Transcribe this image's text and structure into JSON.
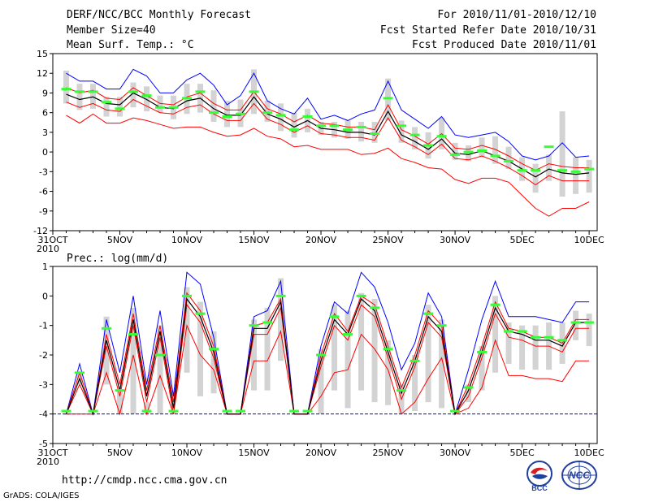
{
  "header": {
    "title": "DERF/NCC/BCC Monthly Forecast",
    "member_size": "Member Size=40",
    "variable": "Mean Surf. Temp.: °C",
    "period": "For 2010/11/01-2010/12/10",
    "started": "Fcst Started Refer Date 2010/10/31",
    "produced": "Fcst Produced Date 2010/11/01"
  },
  "footer": {
    "url": "http://cmdp.ncc.cma.gov.cn",
    "grads": "GrADS: COLA/IGES",
    "logo_left": "BCC",
    "logo_right": "NCC"
  },
  "colors": {
    "mean": "#000000",
    "upper": "#0000ff",
    "lower": "#ff0000",
    "spread_bar": "#d3d3d3",
    "marker": "#33ff33",
    "axis": "#000000"
  },
  "chart_data": [
    {
      "type": "line",
      "title": "Mean Surf. Temp.: °C",
      "xlabel": "",
      "ylabel": "°C",
      "ylim": [
        -12,
        15
      ],
      "yticks": [
        "-12",
        "-9",
        "-6",
        "-3",
        "0",
        "3",
        "6",
        "9",
        "12",
        "15"
      ],
      "yticks_values": [
        -12,
        -9,
        -6,
        -3,
        0,
        3,
        6,
        9,
        12,
        15
      ],
      "xticks": [
        "31OCT\n2010",
        "5NOV",
        "10NOV",
        "15NOV",
        "20NOV",
        "25NOV",
        "30NOV",
        "5DEC",
        "10DEC"
      ],
      "xticks_days": [
        0,
        5,
        10,
        15,
        20,
        25,
        30,
        35,
        40
      ],
      "days": [
        1,
        2,
        3,
        4,
        5,
        6,
        7,
        8,
        9,
        10,
        11,
        12,
        13,
        14,
        15,
        16,
        17,
        18,
        19,
        20,
        21,
        22,
        23,
        24,
        25,
        26,
        27,
        28,
        29,
        30,
        31,
        32,
        33,
        34,
        35,
        36,
        37,
        38,
        39,
        40
      ],
      "series": [
        {
          "name": "upper",
          "values": [
            12,
            10.8,
            10.8,
            9.6,
            9.6,
            12.6,
            11.6,
            9,
            9,
            11,
            12,
            10.2,
            7.2,
            8.6,
            12,
            7.8,
            6.6,
            5.8,
            8.2,
            5,
            5.6,
            4.8,
            5.8,
            6.4,
            10.8,
            6.4,
            5,
            3.6,
            5.4,
            2.6,
            2.2,
            2.6,
            3,
            1.6,
            -0.6,
            -1.2,
            -0.6,
            1.4,
            -0.8,
            -0.6
          ]
        },
        {
          "name": "ens_high",
          "values": [
            9.8,
            9,
            9.4,
            8.2,
            8,
            9.8,
            8.6,
            7.4,
            7.2,
            8.4,
            9,
            7.4,
            6.4,
            6.4,
            9.2,
            6.6,
            5.8,
            4.6,
            5.6,
            4.4,
            4.2,
            3.8,
            3.8,
            3.4,
            7.2,
            3.4,
            2.4,
            1.2,
            2.8,
            0.6,
            0.4,
            1,
            0.4,
            -0.6,
            -1.8,
            -2.8,
            -1.8,
            -2.2,
            -2.4,
            -2.4
          ]
        },
        {
          "name": "mean",
          "values": [
            8.8,
            8,
            8.4,
            7.4,
            7.2,
            9,
            8,
            6.8,
            6.6,
            7.8,
            8.2,
            6.6,
            5.6,
            5.6,
            8.4,
            5.8,
            5,
            3.8,
            4.8,
            3.6,
            3.4,
            3,
            3,
            2.6,
            6.2,
            2.6,
            1.6,
            0.4,
            2,
            -0.2,
            -0.4,
            0.2,
            -0.6,
            -1.4,
            -2.6,
            -3.8,
            -2.6,
            -3.2,
            -3.4,
            -3.2
          ]
        },
        {
          "name": "ens_low",
          "values": [
            7.6,
            6.8,
            7.4,
            6.4,
            6.2,
            8,
            7,
            6,
            5.8,
            6.8,
            7.2,
            5.8,
            4.8,
            4.8,
            7.4,
            5,
            4.2,
            3,
            4,
            2.8,
            2.6,
            2.2,
            2.2,
            1.8,
            5.2,
            1.8,
            0.8,
            -0.4,
            1.2,
            -1,
            -1.2,
            -0.6,
            -1.4,
            -2.4,
            -3.6,
            -5,
            -3.6,
            -4.4,
            -4.4,
            -4.4
          ]
        },
        {
          "name": "lower",
          "values": [
            5.6,
            4.4,
            5.8,
            4.4,
            4.4,
            5.2,
            4.8,
            4.2,
            3.6,
            3.8,
            3.8,
            3,
            2.4,
            2.6,
            3.6,
            2.4,
            2,
            0.8,
            1,
            0.4,
            0.4,
            0.4,
            -0.4,
            -0.2,
            0.6,
            -1,
            -1.6,
            -2.4,
            -2.6,
            -4.2,
            -4.8,
            -4,
            -4,
            -4.6,
            -6.6,
            -8.6,
            -9.8,
            -8.6,
            -8.6,
            -7.6
          ]
        },
        {
          "name": "spread_top",
          "values": [
            12.4,
            10.4,
            10.4,
            8.4,
            8.4,
            10.6,
            10,
            8.6,
            8.6,
            10.4,
            10.4,
            9.4,
            7.8,
            8,
            12.6,
            7.8,
            7.4,
            6,
            6.6,
            4.6,
            4.6,
            4.8,
            4.6,
            4.6,
            11.2,
            4.8,
            3.8,
            3,
            5.2,
            1.4,
            1,
            2.2,
            2.4,
            0.8,
            -0.8,
            -1.8,
            -0.4,
            6.2,
            -0.8,
            -1.2
          ]
        },
        {
          "name": "spread_bottom",
          "values": [
            7.4,
            6.4,
            6.6,
            5.4,
            5.4,
            6.8,
            6.2,
            6,
            5,
            5.8,
            6,
            4.6,
            3.8,
            3.8,
            5.8,
            4.6,
            3.2,
            2.2,
            3,
            2.6,
            2.2,
            2,
            1.6,
            1.4,
            4.8,
            1.4,
            0.4,
            -1,
            0.4,
            -1.2,
            -1.4,
            -0.8,
            -1.8,
            -2.6,
            -4.4,
            -6.2,
            -4.4,
            -6.8,
            -6.4,
            -6.2
          ]
        },
        {
          "name": "marker",
          "values": [
            9.6,
            9.2,
            9.2,
            7.6,
            6.6,
            9.2,
            8.6,
            6.8,
            6.8,
            8.2,
            9.2,
            6,
            5.4,
            5.8,
            9.2,
            6,
            5.6,
            3.4,
            5.4,
            4,
            4,
            3.4,
            3.8,
            2.8,
            8.2,
            4,
            2.6,
            1,
            2.4,
            -0.4,
            0,
            0.2,
            -0.6,
            -1.4,
            -2.8,
            -2.8,
            0.8,
            -2.8,
            -3,
            -2.6
          ]
        }
      ]
    },
    {
      "type": "line",
      "title": "Prec.: log(mm/d)",
      "xlabel": "",
      "ylabel": "log(mm/d)",
      "ylim": [
        -5,
        1
      ],
      "yticks": [
        "-5",
        "-4",
        "-3",
        "-2",
        "-1",
        "0",
        "1"
      ],
      "yticks_values": [
        -5,
        -4,
        -3,
        -2,
        -1,
        0,
        1
      ],
      "xticks": [
        "31OCT\n2010",
        "5NOV",
        "10NOV",
        "15NOV",
        "20NOV",
        "25NOV",
        "30NOV",
        "5DEC",
        "10DEC"
      ],
      "xticks_days": [
        0,
        5,
        10,
        15,
        20,
        25,
        30,
        35,
        40
      ],
      "baseline": -4,
      "days": [
        1,
        2,
        3,
        4,
        5,
        6,
        7,
        8,
        9,
        10,
        11,
        12,
        13,
        14,
        15,
        16,
        17,
        18,
        19,
        20,
        21,
        22,
        23,
        24,
        25,
        26,
        27,
        28,
        29,
        30,
        31,
        32,
        33,
        34,
        35,
        36,
        37,
        38,
        39,
        40
      ],
      "series": [
        {
          "name": "upper",
          "values": [
            -4,
            -2.3,
            -4,
            -0.8,
            -2.6,
            0,
            -3,
            -0.5,
            -3.4,
            0.8,
            0.4,
            -1.4,
            -4,
            -4,
            -0.7,
            -0.5,
            0.5,
            -4,
            -4,
            -1.7,
            -0.2,
            -0.6,
            0.8,
            0.3,
            -0.9,
            -2.5,
            -1.6,
            0.1,
            -0.7,
            -4,
            -2.5,
            -0.8,
            0.5,
            -0.7,
            -0.7,
            -0.7,
            -0.8,
            -0.9,
            -0.2,
            -0.2
          ]
        },
        {
          "name": "ens_high",
          "values": [
            -4,
            -2.6,
            -4,
            -1.3,
            -3,
            -0.6,
            -3.2,
            -1,
            -3.6,
            0.1,
            -0.5,
            -1.7,
            -4,
            -4,
            -1,
            -0.9,
            -0.1,
            -4,
            -4,
            -2,
            -0.6,
            -1.2,
            0,
            -0.3,
            -1.7,
            -3.1,
            -2,
            -0.5,
            -1,
            -4,
            -3,
            -1.7,
            -0.2,
            -1.1,
            -1.2,
            -1.4,
            -1.4,
            -1.6,
            -0.8,
            -0.8
          ]
        },
        {
          "name": "mean",
          "values": [
            -4,
            -2.8,
            -4,
            -1.5,
            -3.2,
            -0.8,
            -3.4,
            -1.2,
            -3.8,
            -0.1,
            -0.7,
            -1.9,
            -4,
            -4,
            -1.1,
            -1.1,
            -0.2,
            -4,
            -4,
            -2.2,
            -0.8,
            -1.3,
            -0.1,
            -0.5,
            -1.9,
            -3.3,
            -2.2,
            -0.7,
            -1.2,
            -4,
            -3.2,
            -1.9,
            -0.4,
            -1.2,
            -1.3,
            -1.5,
            -1.5,
            -1.7,
            -0.9,
            -0.9
          ]
        },
        {
          "name": "ens_low",
          "values": [
            -4,
            -3,
            -4,
            -1.7,
            -3.4,
            -1,
            -3.6,
            -1.4,
            -4,
            -0.3,
            -0.9,
            -2.1,
            -4,
            -4,
            -1.3,
            -1.3,
            -0.4,
            -4,
            -4,
            -2.4,
            -1,
            -1.5,
            -0.3,
            -0.7,
            -2.1,
            -3.5,
            -2.4,
            -0.9,
            -1.4,
            -4,
            -3.4,
            -2.1,
            -0.6,
            -1.4,
            -1.5,
            -1.7,
            -1.7,
            -1.9,
            -1.1,
            -1.1
          ]
        },
        {
          "name": "lower",
          "values": [
            -4,
            -4,
            -4,
            -2.6,
            -4,
            -2,
            -4,
            -2.7,
            -4,
            -1,
            -2,
            -2.5,
            -4,
            -4,
            -2.2,
            -2.2,
            -1.2,
            -4,
            -4,
            -3.4,
            -2.6,
            -2.5,
            -1.3,
            -1.8,
            -2.5,
            -4,
            -3.6,
            -2.8,
            -2.1,
            -4,
            -3.8,
            -3.1,
            -1.5,
            -2.7,
            -2.7,
            -2.8,
            -2.8,
            -2.9,
            -2.2,
            -2.2
          ]
        },
        {
          "name": "spread_top",
          "values": [
            -4,
            -2.6,
            -4,
            -0.7,
            -3.2,
            -0.4,
            -3.6,
            -1,
            -3.9,
            0.3,
            -0.2,
            -1.2,
            -4,
            -4,
            -0.8,
            -0.4,
            0.6,
            -4,
            -4,
            -1.8,
            -0.3,
            -0.5,
            0.1,
            -0.1,
            -1.5,
            -3,
            -2,
            -0.3,
            -0.8,
            -4,
            -3,
            -1.7,
            0,
            -0.9,
            -1,
            -1,
            -0.9,
            -0.9,
            -0.5,
            -0.6
          ]
        },
        {
          "name": "spread_bottom",
          "values": [
            -4,
            -3,
            -4,
            -3,
            -4,
            -4,
            -4,
            -4,
            -4,
            -2.6,
            -3.4,
            -3.3,
            -4,
            -4,
            -3.2,
            -3.2,
            -2.2,
            -4,
            -4,
            -4,
            -3.2,
            -3.8,
            -3.2,
            -3.6,
            -3.7,
            -4,
            -3.9,
            -3.6,
            -3.8,
            -4,
            -3.6,
            -3.2,
            -2.6,
            -2.3,
            -2.5,
            -2.5,
            -2.5,
            -2.3,
            -1.5,
            -1.7
          ]
        },
        {
          "name": "marker",
          "values": [
            -3.9,
            -2.6,
            -3.9,
            -1.1,
            -3.2,
            -1.3,
            -3.9,
            -2,
            -3.9,
            0,
            -0.6,
            -1.8,
            -3.9,
            -3.9,
            -1,
            -0.9,
            0,
            -3.9,
            -3.9,
            -2,
            -0.7,
            -1.3,
            0,
            -0.4,
            -1.8,
            -3.2,
            -2.2,
            -0.6,
            -1,
            -3.9,
            -3.1,
            -1.9,
            -0.3,
            -1.2,
            -1.2,
            -1.4,
            -1.4,
            -1.5,
            -0.9,
            -0.9
          ]
        }
      ]
    }
  ]
}
